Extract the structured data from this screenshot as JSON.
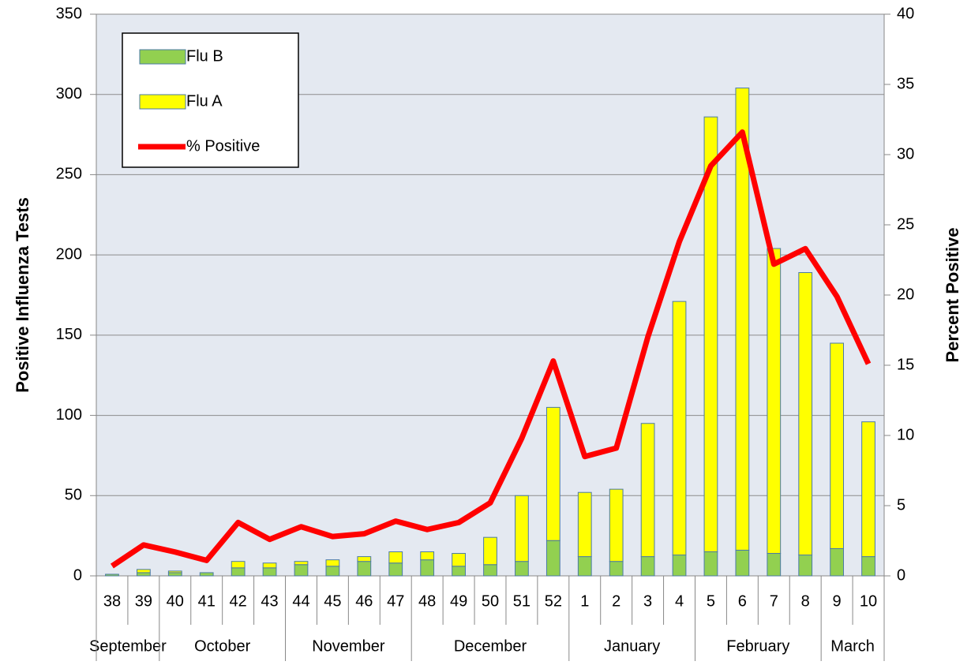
{
  "chart_data": {
    "type": "bar-line",
    "categories": [
      "38",
      "39",
      "40",
      "41",
      "42",
      "43",
      "44",
      "45",
      "46",
      "47",
      "48",
      "49",
      "50",
      "51",
      "52",
      "1",
      "2",
      "3",
      "4",
      "5",
      "6",
      "7",
      "8",
      "9",
      "10"
    ],
    "category_groups": [
      {
        "label": "September",
        "count": 2
      },
      {
        "label": "October",
        "count": 4
      },
      {
        "label": "November",
        "count": 4
      },
      {
        "label": "December",
        "count": 5
      },
      {
        "label": "January",
        "count": 4
      },
      {
        "label": "February",
        "count": 4
      },
      {
        "label": "March",
        "count": 2
      }
    ],
    "series": [
      {
        "name": "Flu B",
        "color": "#92d050",
        "stacked": true,
        "values": [
          1,
          2,
          2,
          2,
          5,
          5,
          7,
          6,
          9,
          8,
          10,
          6,
          7,
          9,
          22,
          12,
          9,
          12,
          13,
          15,
          16,
          14,
          13,
          17,
          12
        ]
      },
      {
        "name": "Flu A",
        "color": "#ffff00",
        "stacked": true,
        "values": [
          0,
          2,
          1,
          0,
          4,
          3,
          2,
          4,
          3,
          7,
          5,
          8,
          17,
          41,
          83,
          40,
          45,
          83,
          158,
          271,
          288,
          190,
          176,
          128,
          84
        ]
      },
      {
        "name": "% Positive",
        "color": "#ff0000",
        "type": "line",
        "axis": "y2",
        "values": [
          0.7,
          2.2,
          1.7,
          1.1,
          3.8,
          2.6,
          3.5,
          2.8,
          3.0,
          3.9,
          3.3,
          3.8,
          5.2,
          9.8,
          15.3,
          8.5,
          9.1,
          17.0,
          23.8,
          29.2,
          31.6,
          22.2,
          23.3,
          19.9,
          15.1
        ]
      }
    ],
    "ylabel": "Positive Influenza Tests",
    "y2label": "Percent Positive",
    "ylim": [
      0,
      350
    ],
    "yticks": [
      0,
      50,
      100,
      150,
      200,
      250,
      300,
      350
    ],
    "y2lim": [
      0,
      40
    ],
    "y2ticks": [
      0,
      5,
      10,
      15,
      20,
      25,
      30,
      35,
      40
    ],
    "grid": true,
    "legend": "top-left"
  }
}
